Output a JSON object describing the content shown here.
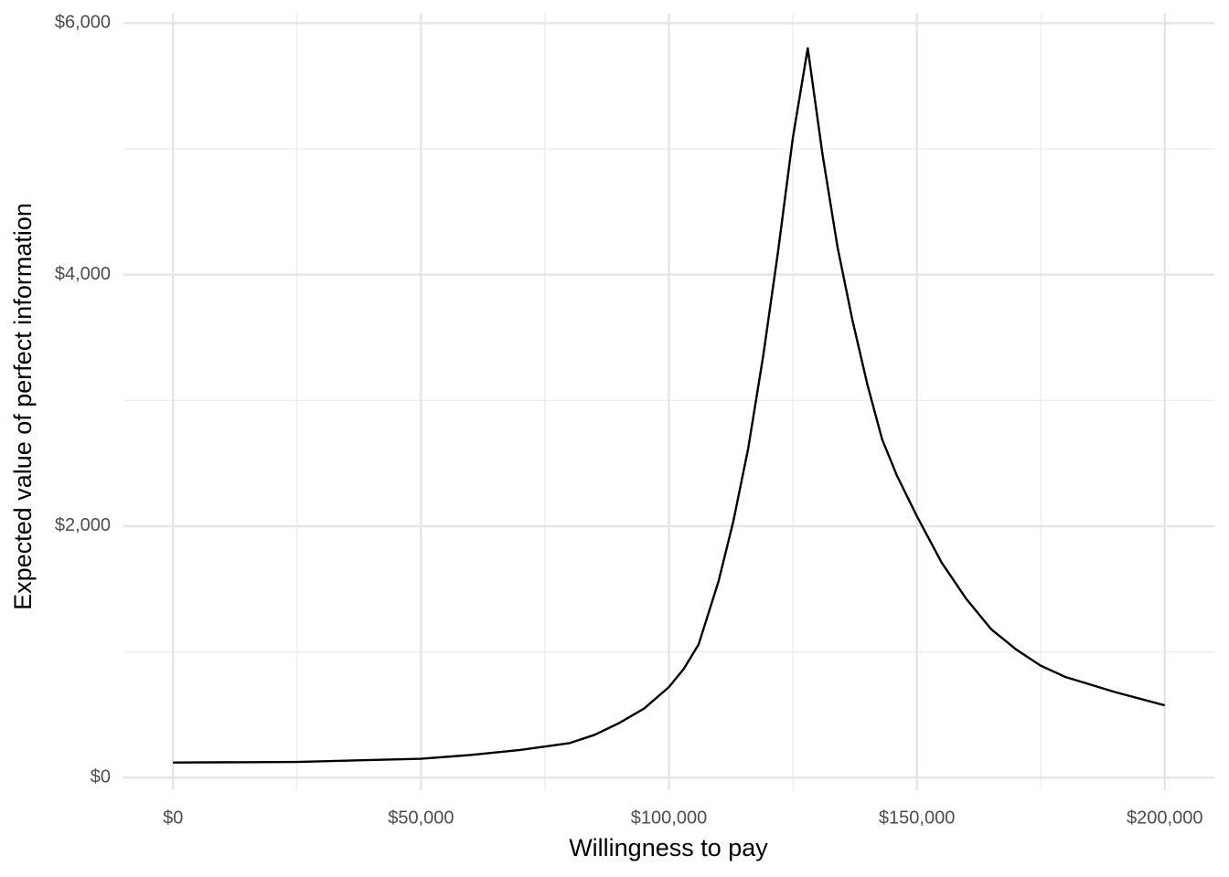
{
  "chart_data": {
    "type": "line",
    "x_label": "Willingness to pay",
    "y_label": "Expected value of perfect information",
    "x": [
      0,
      25000,
      50000,
      60000,
      70000,
      80000,
      85000,
      90000,
      95000,
      100000,
      103000,
      106000,
      110000,
      113000,
      116000,
      119000,
      122000,
      125000,
      128000,
      131000,
      134000,
      137000,
      140000,
      143000,
      146000,
      150000,
      155000,
      160000,
      165000,
      170000,
      175000,
      180000,
      190000,
      200000
    ],
    "values": [
      120,
      125,
      150,
      180,
      220,
      275,
      340,
      435,
      550,
      720,
      865,
      1060,
      1560,
      2040,
      2620,
      3350,
      4180,
      5090,
      5800,
      4950,
      4220,
      3640,
      3130,
      2690,
      2400,
      2080,
      1710,
      1420,
      1180,
      1020,
      890,
      800,
      680,
      575
    ],
    "color": "#000000",
    "xlim": [
      -10000,
      210000
    ],
    "ylim": [
      -100,
      6075
    ],
    "xticks": [
      {
        "value": 0,
        "label": "$0"
      },
      {
        "value": 50000,
        "label": "$50,000"
      },
      {
        "value": 100000,
        "label": "$100,000"
      },
      {
        "value": 150000,
        "label": "$150,000"
      },
      {
        "value": 200000,
        "label": "$200,000"
      }
    ],
    "yticks": [
      {
        "value": 0,
        "label": "$0"
      },
      {
        "value": 2000,
        "label": "$2,000"
      },
      {
        "value": 4000,
        "label": "$4,000"
      },
      {
        "value": 6000,
        "label": "$6,000"
      }
    ],
    "grid": true
  }
}
